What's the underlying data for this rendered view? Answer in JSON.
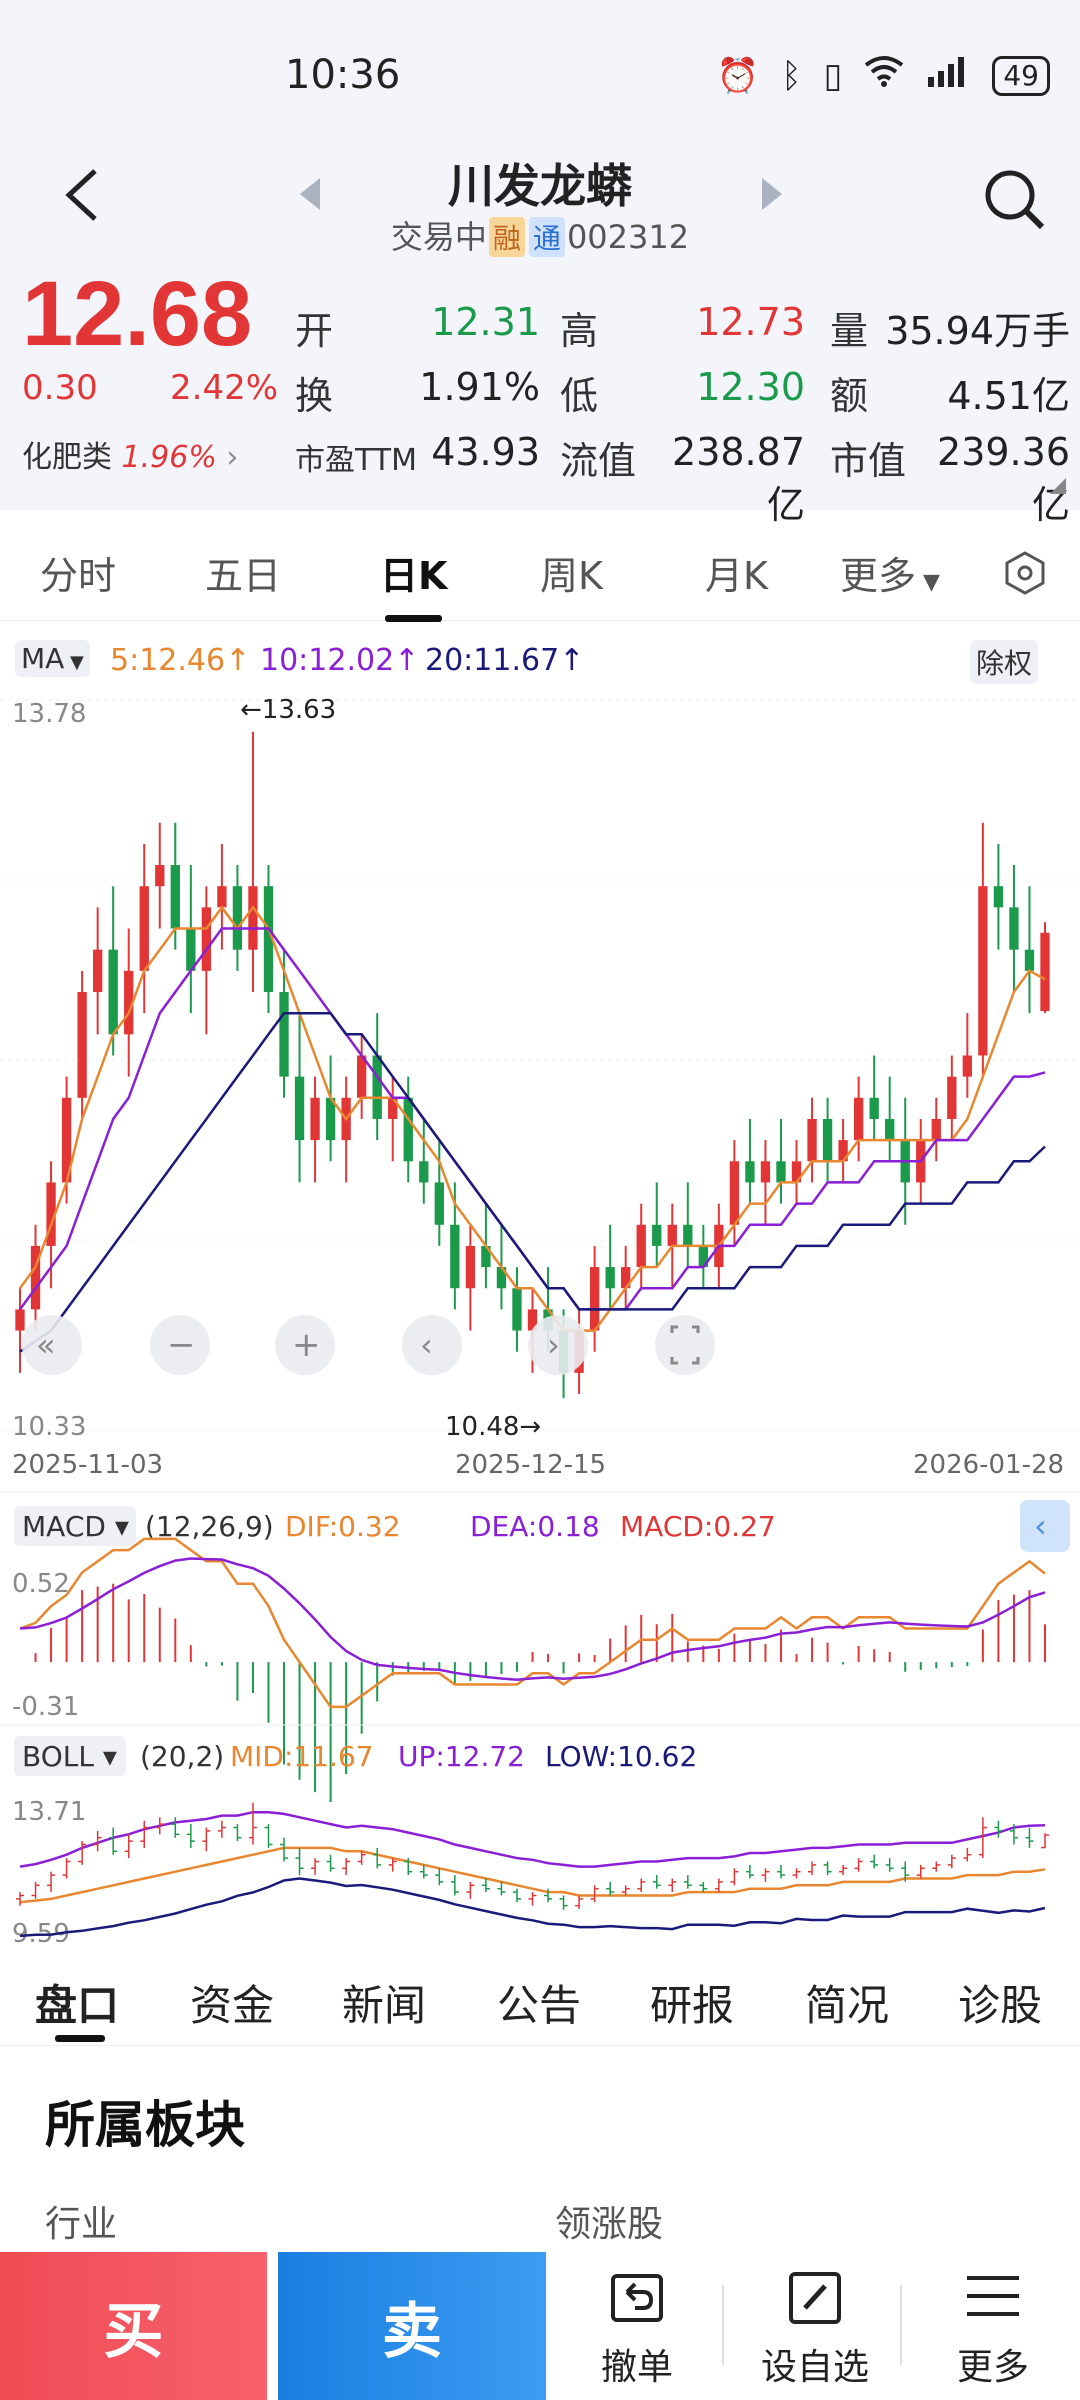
{
  "status_bar": {
    "time": "10:36",
    "battery": "49"
  },
  "header": {
    "stock_name": "川发龙蟒",
    "trade_status": "交易中",
    "tag_rong": "融",
    "tag_tong": "通",
    "code": "002312"
  },
  "quote": {
    "price": "12.68",
    "change": "0.30",
    "change_pct": "2.42%",
    "sector_name": "化肥类",
    "sector_pct": "1.96%",
    "open_label": "开",
    "open": "12.31",
    "high_label": "高",
    "high": "12.73",
    "volume_label": "量",
    "volume": "35.94万手",
    "turnover_label": "换",
    "turnover": "1.91%",
    "low_label": "低",
    "low": "12.30",
    "amount_label": "额",
    "amount": "4.51亿",
    "pe_label": "市盈TTM",
    "pe": "43.93",
    "float_label": "流值",
    "float_cap": "238.87亿",
    "mcap_label": "市值",
    "mcap": "239.36亿"
  },
  "period_tabs": [
    {
      "label": "分时"
    },
    {
      "label": "五日"
    },
    {
      "label": "日K"
    },
    {
      "label": "周K"
    },
    {
      "label": "月K"
    },
    {
      "label": "更多"
    }
  ],
  "chart_header": {
    "ma_label": "MA",
    "ma5": "5:12.46↑",
    "ma10": "10:12.02↑",
    "ma20": "20:11.67↑",
    "adjust": "除权"
  },
  "colors": {
    "up": "#e23636",
    "down": "#1a9a4a",
    "ma5": "#e8872f",
    "ma10": "#8a1fd6",
    "ma20": "#1a1a7a",
    "buy": "#f04b55",
    "sell": "#1a7ee0"
  },
  "chart_data": {
    "type": "candlestick",
    "ylim": [
      10.33,
      13.78
    ],
    "y_top_label": "13.78",
    "y_bottom_label": "10.33",
    "max_annotation": "←13.63",
    "min_annotation": "10.48→",
    "dates": [
      "2025-11-03",
      "2025-12-15",
      "2026-01-28"
    ],
    "ohlc": [
      [
        10.8,
        11.0,
        10.6,
        10.9
      ],
      [
        10.9,
        11.3,
        10.8,
        11.2
      ],
      [
        11.2,
        11.6,
        11.0,
        11.5
      ],
      [
        11.5,
        12.0,
        11.4,
        11.9
      ],
      [
        11.9,
        12.5,
        11.8,
        12.4
      ],
      [
        12.4,
        12.8,
        12.2,
        12.6
      ],
      [
        12.6,
        12.9,
        12.1,
        12.2
      ],
      [
        12.2,
        12.7,
        12.0,
        12.5
      ],
      [
        12.5,
        13.1,
        12.3,
        12.9
      ],
      [
        12.9,
        13.2,
        12.7,
        13.0
      ],
      [
        13.0,
        13.2,
        12.6,
        12.7
      ],
      [
        12.7,
        13.0,
        12.3,
        12.5
      ],
      [
        12.5,
        12.9,
        12.2,
        12.8
      ],
      [
        12.8,
        13.1,
        12.6,
        12.9
      ],
      [
        12.9,
        13.0,
        12.5,
        12.6
      ],
      [
        12.6,
        13.63,
        12.4,
        12.9
      ],
      [
        12.9,
        13.0,
        12.3,
        12.4
      ],
      [
        12.4,
        12.6,
        11.9,
        12.0
      ],
      [
        12.0,
        12.3,
        11.5,
        11.7
      ],
      [
        11.7,
        12.0,
        11.5,
        11.9
      ],
      [
        11.9,
        12.1,
        11.6,
        11.7
      ],
      [
        11.7,
        12.0,
        11.5,
        11.9
      ],
      [
        11.9,
        12.2,
        11.8,
        12.1
      ],
      [
        12.1,
        12.3,
        11.7,
        11.8
      ],
      [
        11.8,
        12.0,
        11.6,
        11.9
      ],
      [
        11.9,
        12.0,
        11.5,
        11.6
      ],
      [
        11.6,
        11.8,
        11.4,
        11.5
      ],
      [
        11.5,
        11.7,
        11.2,
        11.3
      ],
      [
        11.3,
        11.5,
        10.9,
        11.0
      ],
      [
        11.0,
        11.3,
        10.8,
        11.2
      ],
      [
        11.2,
        11.4,
        11.0,
        11.1
      ],
      [
        11.1,
        11.3,
        10.9,
        11.0
      ],
      [
        11.0,
        11.1,
        10.7,
        10.8
      ],
      [
        10.8,
        11.0,
        10.6,
        10.9
      ],
      [
        10.9,
        11.1,
        10.7,
        10.8
      ],
      [
        10.8,
        10.9,
        10.48,
        10.6
      ],
      [
        10.6,
        10.9,
        10.5,
        10.8
      ],
      [
        10.8,
        11.2,
        10.7,
        11.1
      ],
      [
        11.1,
        11.3,
        10.9,
        11.0
      ],
      [
        11.0,
        11.2,
        10.9,
        11.1
      ],
      [
        11.1,
        11.4,
        11.0,
        11.3
      ],
      [
        11.3,
        11.5,
        11.1,
        11.2
      ],
      [
        11.2,
        11.4,
        11.0,
        11.3
      ],
      [
        11.3,
        11.5,
        11.1,
        11.2
      ],
      [
        11.2,
        11.3,
        11.0,
        11.1
      ],
      [
        11.1,
        11.4,
        11.0,
        11.3
      ],
      [
        11.3,
        11.7,
        11.2,
        11.6
      ],
      [
        11.6,
        11.8,
        11.4,
        11.5
      ],
      [
        11.5,
        11.7,
        11.3,
        11.6
      ],
      [
        11.6,
        11.8,
        11.4,
        11.5
      ],
      [
        11.5,
        11.7,
        11.4,
        11.6
      ],
      [
        11.6,
        11.9,
        11.5,
        11.8
      ],
      [
        11.8,
        11.9,
        11.5,
        11.6
      ],
      [
        11.6,
        11.8,
        11.5,
        11.7
      ],
      [
        11.7,
        12.0,
        11.6,
        11.9
      ],
      [
        11.9,
        12.1,
        11.7,
        11.8
      ],
      [
        11.8,
        12.0,
        11.6,
        11.7
      ],
      [
        11.7,
        11.9,
        11.3,
        11.5
      ],
      [
        11.5,
        11.8,
        11.4,
        11.7
      ],
      [
        11.7,
        11.9,
        11.6,
        11.8
      ],
      [
        11.8,
        12.1,
        11.7,
        12.0
      ],
      [
        12.0,
        12.3,
        11.9,
        12.1
      ],
      [
        12.1,
        13.2,
        12.0,
        12.9
      ],
      [
        12.9,
        13.1,
        12.6,
        12.8
      ],
      [
        12.8,
        13.0,
        12.4,
        12.6
      ],
      [
        12.6,
        12.9,
        12.3,
        12.5
      ],
      [
        12.31,
        12.73,
        12.3,
        12.68
      ]
    ],
    "ma5": [
      11.0,
      11.1,
      11.3,
      11.5,
      11.8,
      12.0,
      12.2,
      12.3,
      12.5,
      12.6,
      12.7,
      12.7,
      12.7,
      12.8,
      12.7,
      12.8,
      12.7,
      12.5,
      12.3,
      12.1,
      11.9,
      11.8,
      11.9,
      11.9,
      11.9,
      11.8,
      11.7,
      11.6,
      11.4,
      11.3,
      11.2,
      11.1,
      11.0,
      11.0,
      10.9,
      10.8,
      10.8,
      10.8,
      10.9,
      11.0,
      11.1,
      11.1,
      11.2,
      11.2,
      11.2,
      11.2,
      11.3,
      11.4,
      11.4,
      11.5,
      11.5,
      11.6,
      11.6,
      11.6,
      11.7,
      11.7,
      11.7,
      11.7,
      11.7,
      11.7,
      11.7,
      11.8,
      12.0,
      12.2,
      12.4,
      12.5,
      12.46
    ],
    "ma10": [
      10.9,
      11.0,
      11.1,
      11.2,
      11.4,
      11.6,
      11.8,
      11.9,
      12.1,
      12.3,
      12.4,
      12.5,
      12.6,
      12.7,
      12.7,
      12.7,
      12.7,
      12.6,
      12.5,
      12.4,
      12.3,
      12.2,
      12.1,
      12.0,
      11.9,
      11.9,
      11.8,
      11.7,
      11.6,
      11.5,
      11.4,
      11.3,
      11.2,
      11.1,
      11.0,
      11.0,
      10.9,
      10.9,
      10.9,
      10.9,
      11.0,
      11.0,
      11.0,
      11.1,
      11.1,
      11.2,
      11.2,
      11.3,
      11.3,
      11.3,
      11.4,
      11.4,
      11.5,
      11.5,
      11.5,
      11.6,
      11.6,
      11.6,
      11.6,
      11.7,
      11.7,
      11.7,
      11.8,
      11.9,
      12.0,
      12.0,
      12.02
    ],
    "ma20": [
      10.7,
      10.75,
      10.8,
      10.9,
      11.0,
      11.1,
      11.2,
      11.3,
      11.4,
      11.5,
      11.6,
      11.7,
      11.8,
      11.9,
      12.0,
      12.1,
      12.2,
      12.3,
      12.3,
      12.3,
      12.3,
      12.2,
      12.2,
      12.1,
      12.0,
      11.9,
      11.8,
      11.7,
      11.6,
      11.5,
      11.4,
      11.3,
      11.2,
      11.1,
      11.0,
      11.0,
      10.9,
      10.9,
      10.9,
      10.9,
      10.9,
      10.9,
      10.9,
      11.0,
      11.0,
      11.0,
      11.0,
      11.1,
      11.1,
      11.1,
      11.2,
      11.2,
      11.2,
      11.3,
      11.3,
      11.3,
      11.3,
      11.4,
      11.4,
      11.4,
      11.4,
      11.5,
      11.5,
      11.5,
      11.6,
      11.6,
      11.67
    ],
    "macd": {
      "params": "(12,26,9)",
      "dif_label": "DIF:0.32",
      "dea_label": "DEA:0.18",
      "macd_label": "MACD:0.27",
      "ymax_label": "0.52",
      "ymin_label": "-0.31",
      "ylim": [
        -0.31,
        0.52
      ]
    },
    "boll": {
      "params": "(20,2)",
      "mid_label": "MID:11.67",
      "up_label": "UP:12.72",
      "low_label": "LOW:10.62",
      "ymax_label": "13.71",
      "ymin_label": "9.59",
      "ylim": [
        9.59,
        13.71
      ]
    }
  },
  "info_tabs": [
    {
      "label": "盘口"
    },
    {
      "label": "资金"
    },
    {
      "label": "新闻"
    },
    {
      "label": "公告"
    },
    {
      "label": "研报"
    },
    {
      "label": "简况"
    },
    {
      "label": "诊股"
    }
  ],
  "section": {
    "title": "所属板块",
    "industry_label": "行业",
    "leader_label": "领涨股"
  },
  "actions": {
    "buy": "买",
    "sell": "卖",
    "cancel": "撤单",
    "watchlist": "设自选",
    "more": "更多"
  }
}
